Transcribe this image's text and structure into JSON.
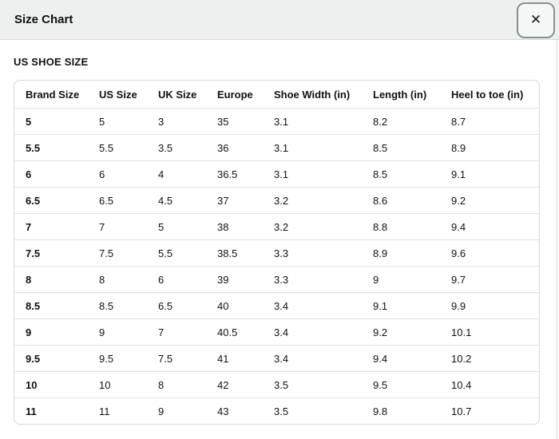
{
  "modal": {
    "title": "Size Chart",
    "section_heading": "US SHOE SIZE"
  },
  "icons": {
    "close": "✕"
  },
  "table": {
    "columns": [
      "Brand Size",
      "US Size",
      "UK Size",
      "Europe",
      "Shoe Width (in)",
      "Length (in)",
      "Heel to toe (in)"
    ],
    "rows": [
      [
        "5",
        "5",
        "3",
        "35",
        "3.1",
        "8.2",
        "8.7"
      ],
      [
        "5.5",
        "5.5",
        "3.5",
        "36",
        "3.1",
        "8.5",
        "8.9"
      ],
      [
        "6",
        "6",
        "4",
        "36.5",
        "3.1",
        "8.5",
        "9.1"
      ],
      [
        "6.5",
        "6.5",
        "4.5",
        "37",
        "3.2",
        "8.6",
        "9.2"
      ],
      [
        "7",
        "7",
        "5",
        "38",
        "3.2",
        "8.8",
        "9.4"
      ],
      [
        "7.5",
        "7.5",
        "5.5",
        "38.5",
        "3.3",
        "8.9",
        "9.6"
      ],
      [
        "8",
        "8",
        "6",
        "39",
        "3.3",
        "9",
        "9.7"
      ],
      [
        "8.5",
        "8.5",
        "6.5",
        "40",
        "3.4",
        "9.1",
        "9.9"
      ],
      [
        "9",
        "9",
        "7",
        "40.5",
        "3.4",
        "9.2",
        "10.1"
      ],
      [
        "9.5",
        "9.5",
        "7.5",
        "41",
        "3.4",
        "9.4",
        "10.2"
      ],
      [
        "10",
        "10",
        "8",
        "42",
        "3.5",
        "9.5",
        "10.4"
      ],
      [
        "11",
        "11",
        "9",
        "43",
        "3.5",
        "9.8",
        "10.7"
      ]
    ]
  },
  "colors": {
    "header_bg": "#eef0f0",
    "border": "#d5d9d9",
    "row_divider": "#e0e3e3",
    "text": "#0f1111",
    "close_button_border": "#899090"
  }
}
